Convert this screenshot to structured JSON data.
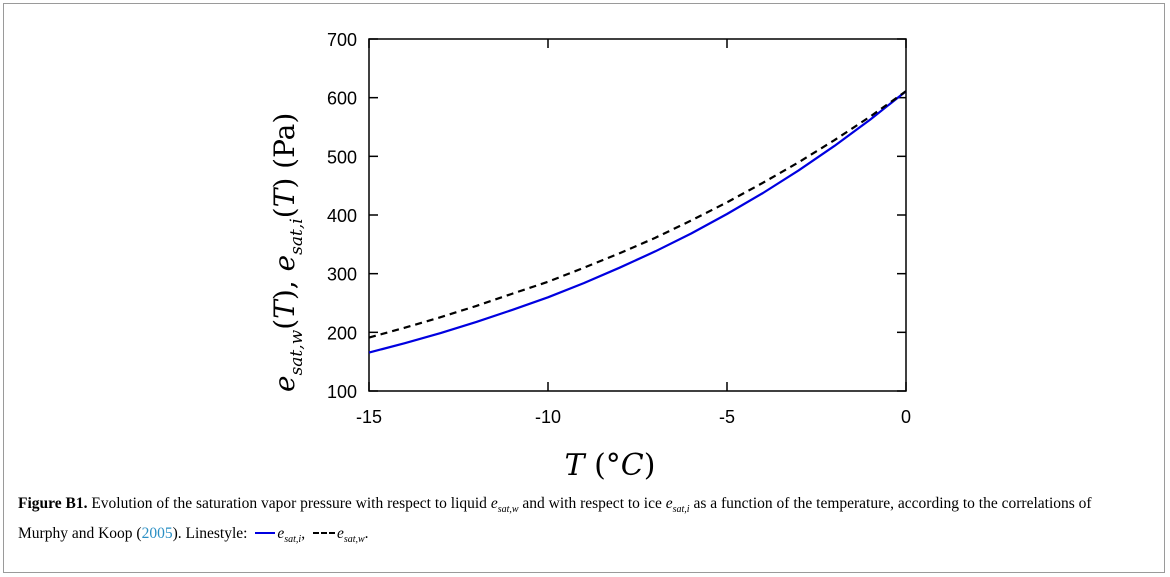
{
  "chart_data": {
    "type": "line",
    "xlim": [
      -15,
      0
    ],
    "ylim": [
      100,
      700
    ],
    "x_ticks": [
      "-15",
      "-10",
      "-5",
      "0"
    ],
    "y_ticks": [
      "100",
      "200",
      "300",
      "400",
      "500",
      "600",
      "700"
    ],
    "xlabel": "T (°C)",
    "ylabel": "e_sat,w(T), e_sat,i(T)  (Pa)",
    "grid": false,
    "series": [
      {
        "name": "e_sat,i",
        "color": "#0000e0",
        "style": "solid",
        "x": [
          -15,
          -14,
          -13,
          -12,
          -11,
          -10,
          -9,
          -8,
          -7,
          -6,
          -5,
          -4,
          -3,
          -2,
          -1,
          0
        ],
        "y": [
          165.5,
          181.5,
          198.8,
          217.7,
          238.2,
          259.7,
          283.9,
          310.2,
          338.1,
          368.5,
          401.7,
          437.3,
          476.0,
          517.7,
          562.6,
          611.0
        ]
      },
      {
        "name": "e_sat,w",
        "color": "#000000",
        "style": "dashed",
        "x": [
          -15,
          -14,
          -13,
          -12,
          -11,
          -10,
          -9,
          -8,
          -7,
          -6,
          -5,
          -4,
          -3,
          -2,
          -1,
          0
        ],
        "y": [
          191.0,
          207.9,
          225.8,
          245.0,
          265.8,
          286.2,
          310.0,
          334.8,
          361.2,
          390.6,
          421.6,
          454.8,
          489.8,
          527.5,
          567.8,
          611.0
        ]
      }
    ]
  },
  "caption": {
    "label": "Figure B1.",
    "text_1": "Evolution of the saturation vapor pressure with respect to liquid",
    "text_2": "and with respect to ice",
    "text_3": "as a function of the temperature, according to the correlations of Murphy and Koop (",
    "year": "2005",
    "text_4": "). Linestyle:",
    "sym_e": "e",
    "sub_w": "sat,w",
    "sub_i": "sat,i"
  }
}
